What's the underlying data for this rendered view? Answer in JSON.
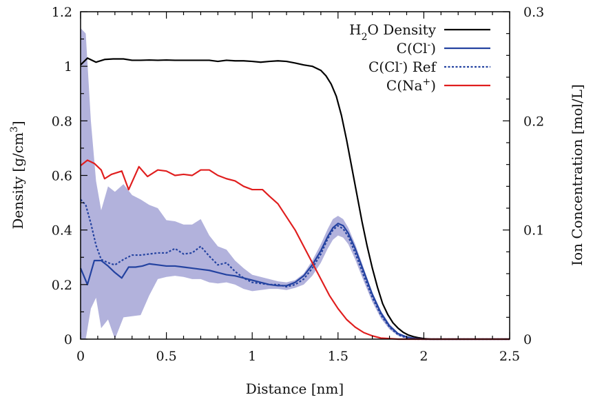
{
  "chart_data": {
    "type": "line",
    "x_axis": {
      "label": "Distance [nm]",
      "range": [
        0,
        2.5
      ],
      "ticks": [
        0,
        0.5,
        1,
        1.5,
        2,
        2.5
      ],
      "tick_labels": [
        "0",
        "0.5",
        "1",
        "1.5",
        "2",
        "2.5"
      ]
    },
    "y_axis_left": {
      "label_main": "Density [g/cm",
      "label_sup": "3",
      "label_end": "]",
      "range": [
        0,
        1.2
      ],
      "ticks": [
        0,
        0.2,
        0.4,
        0.6,
        0.8,
        1,
        1.2
      ],
      "tick_labels": [
        "0",
        "0.2",
        "0.4",
        "0.6",
        "0.8",
        "1",
        "1.2"
      ]
    },
    "y_axis_right": {
      "label": "Ion Concentration [mol/L]",
      "range": [
        0,
        0.3
      ],
      "ticks": [
        0,
        0.1,
        0.2,
        0.3
      ],
      "tick_labels": [
        "0",
        "0.1",
        "0.2",
        "0.3"
      ]
    },
    "legend": {
      "position": "top-right",
      "entries": [
        {
          "key": "h2o",
          "parts": [
            {
              "t": "H"
            },
            {
              "t": "2",
              "sub": true
            },
            {
              "t": "O Density"
            }
          ]
        },
        {
          "key": "cl",
          "parts": [
            {
              "t": "C(Cl"
            },
            {
              "t": "-",
              "sup": true
            },
            {
              "t": ")"
            }
          ]
        },
        {
          "key": "clref",
          "parts": [
            {
              "t": "C(Cl"
            },
            {
              "t": "-",
              "sup": true
            },
            {
              "t": ") Ref"
            }
          ]
        },
        {
          "key": "na",
          "parts": [
            {
              "t": "C(Na"
            },
            {
              "t": "+",
              "sup": true
            },
            {
              "t": ")"
            }
          ]
        }
      ]
    },
    "series": [
      {
        "key": "h2o",
        "name": "H2O Density",
        "axis": "left",
        "color": "#000000",
        "dash": "",
        "x": [
          0,
          0.04,
          0.09,
          0.14,
          0.19,
          0.25,
          0.3,
          0.35,
          0.4,
          0.45,
          0.5,
          0.55,
          0.6,
          0.65,
          0.7,
          0.75,
          0.8,
          0.85,
          0.9,
          0.95,
          1.0,
          1.05,
          1.1,
          1.15,
          1.2,
          1.25,
          1.3,
          1.35,
          1.4,
          1.43,
          1.46,
          1.49,
          1.52,
          1.55,
          1.58,
          1.61,
          1.64,
          1.67,
          1.7,
          1.73,
          1.76,
          1.79,
          1.82,
          1.85,
          1.88,
          1.91,
          1.94,
          1.97,
          2.0,
          2.04,
          2.08,
          2.12,
          2.2,
          2.3,
          2.4,
          2.5
        ],
        "y": [
          1.005,
          1.03,
          1.015,
          1.025,
          1.027,
          1.027,
          1.022,
          1.022,
          1.023,
          1.022,
          1.023,
          1.022,
          1.022,
          1.022,
          1.022,
          1.022,
          1.018,
          1.022,
          1.02,
          1.02,
          1.018,
          1.015,
          1.018,
          1.02,
          1.018,
          1.012,
          1.005,
          1.0,
          0.985,
          0.965,
          0.935,
          0.89,
          0.82,
          0.73,
          0.63,
          0.53,
          0.43,
          0.34,
          0.26,
          0.19,
          0.13,
          0.09,
          0.06,
          0.04,
          0.025,
          0.015,
          0.009,
          0.005,
          0.002,
          0.0,
          0.0,
          0.0,
          0.0,
          0.0,
          0.0,
          0.0
        ]
      },
      {
        "key": "cl",
        "name": "C(Cl-)",
        "axis": "right",
        "color": "#2342a0",
        "dash": "",
        "x": [
          0,
          0.04,
          0.08,
          0.12,
          0.16,
          0.2,
          0.24,
          0.28,
          0.32,
          0.36,
          0.4,
          0.45,
          0.5,
          0.55,
          0.6,
          0.65,
          0.7,
          0.75,
          0.8,
          0.85,
          0.9,
          0.95,
          1.0,
          1.05,
          1.1,
          1.15,
          1.2,
          1.25,
          1.3,
          1.35,
          1.4,
          1.44,
          1.47,
          1.5,
          1.53,
          1.56,
          1.6,
          1.65,
          1.7,
          1.75,
          1.8,
          1.85,
          1.9,
          1.95,
          2.0,
          2.05,
          2.1,
          2.2,
          2.3,
          2.5
        ],
        "y": [
          0.065,
          0.05,
          0.072,
          0.072,
          0.067,
          0.061,
          0.056,
          0.066,
          0.066,
          0.067,
          0.069,
          0.068,
          0.067,
          0.067,
          0.066,
          0.065,
          0.064,
          0.063,
          0.061,
          0.059,
          0.058,
          0.056,
          0.054,
          0.052,
          0.05,
          0.049,
          0.049,
          0.052,
          0.058,
          0.068,
          0.081,
          0.094,
          0.102,
          0.106,
          0.104,
          0.097,
          0.083,
          0.062,
          0.041,
          0.024,
          0.012,
          0.005,
          0.002,
          0.0005,
          0.0,
          0.0,
          0.0,
          0.0,
          0.0,
          0.0
        ]
      },
      {
        "key": "clref",
        "name": "C(Cl-) Ref",
        "axis": "right",
        "color": "#2342a0",
        "dash": "3,2.5",
        "x": [
          0,
          0.03,
          0.06,
          0.09,
          0.12,
          0.16,
          0.2,
          0.25,
          0.3,
          0.35,
          0.4,
          0.45,
          0.5,
          0.55,
          0.6,
          0.65,
          0.7,
          0.75,
          0.8,
          0.85,
          0.9,
          0.95,
          1.0,
          1.05,
          1.1,
          1.15,
          1.2,
          1.25,
          1.3,
          1.35,
          1.4,
          1.44,
          1.47,
          1.5,
          1.53,
          1.56,
          1.6,
          1.65,
          1.7,
          1.75,
          1.8,
          1.85,
          1.9,
          1.95,
          2.0,
          2.1,
          2.2,
          2.5
        ],
        "y": [
          0.128,
          0.123,
          0.106,
          0.086,
          0.073,
          0.07,
          0.068,
          0.073,
          0.077,
          0.077,
          0.078,
          0.079,
          0.079,
          0.083,
          0.078,
          0.079,
          0.085,
          0.076,
          0.068,
          0.07,
          0.062,
          0.056,
          0.052,
          0.051,
          0.05,
          0.05,
          0.048,
          0.05,
          0.055,
          0.065,
          0.078,
          0.092,
          0.1,
          0.104,
          0.101,
          0.094,
          0.079,
          0.058,
          0.038,
          0.022,
          0.011,
          0.004,
          0.001,
          0.0,
          0.0,
          0.0,
          0.0,
          0.0
        ]
      },
      {
        "key": "na",
        "name": "C(Na+)",
        "axis": "right",
        "color": "#e01e1e",
        "dash": "",
        "x": [
          0,
          0.04,
          0.08,
          0.12,
          0.14,
          0.18,
          0.24,
          0.28,
          0.34,
          0.39,
          0.45,
          0.5,
          0.55,
          0.6,
          0.65,
          0.7,
          0.75,
          0.8,
          0.85,
          0.9,
          0.95,
          1.0,
          1.03,
          1.06,
          1.1,
          1.15,
          1.2,
          1.25,
          1.3,
          1.35,
          1.4,
          1.45,
          1.5,
          1.55,
          1.6,
          1.65,
          1.7,
          1.75,
          1.8,
          1.85,
          1.9,
          1.95,
          2.0,
          2.1,
          2.2,
          2.5
        ],
        "y": [
          0.159,
          0.164,
          0.161,
          0.155,
          0.147,
          0.151,
          0.154,
          0.137,
          0.158,
          0.149,
          0.155,
          0.154,
          0.15,
          0.151,
          0.15,
          0.155,
          0.155,
          0.15,
          0.147,
          0.145,
          0.14,
          0.137,
          0.137,
          0.137,
          0.131,
          0.124,
          0.112,
          0.1,
          0.085,
          0.07,
          0.055,
          0.04,
          0.028,
          0.018,
          0.011,
          0.006,
          0.003,
          0.001,
          0.0005,
          0.0,
          0.0,
          0.0,
          0.0,
          0.0,
          0.0,
          0.0
        ]
      }
    ],
    "band": {
      "name": "C(Cl-) Ref uncertainty",
      "axis": "right",
      "color": "#b2b2dc",
      "x": [
        0,
        0.03,
        0.06,
        0.09,
        0.12,
        0.16,
        0.2,
        0.25,
        0.3,
        0.35,
        0.4,
        0.45,
        0.5,
        0.55,
        0.6,
        0.65,
        0.7,
        0.75,
        0.8,
        0.85,
        0.9,
        0.95,
        1.0,
        1.05,
        1.1,
        1.15,
        1.2,
        1.25,
        1.3,
        1.35,
        1.4,
        1.44,
        1.47,
        1.5,
        1.53,
        1.56,
        1.6,
        1.65,
        1.7,
        1.75,
        1.8,
        1.85,
        1.9,
        1.95,
        2.0,
        2.1,
        2.2,
        2.5
      ],
      "upper": [
        0.285,
        0.28,
        0.2,
        0.145,
        0.118,
        0.14,
        0.135,
        0.142,
        0.132,
        0.128,
        0.123,
        0.12,
        0.109,
        0.108,
        0.105,
        0.105,
        0.11,
        0.095,
        0.085,
        0.082,
        0.072,
        0.065,
        0.059,
        0.057,
        0.055,
        0.053,
        0.052,
        0.054,
        0.06,
        0.072,
        0.087,
        0.101,
        0.11,
        0.113,
        0.11,
        0.102,
        0.087,
        0.065,
        0.043,
        0.026,
        0.014,
        0.006,
        0.002,
        0.0005,
        0.0,
        0.0,
        0.0,
        0.0
      ],
      "lower": [
        0.0,
        0.0,
        0.028,
        0.038,
        0.01,
        0.018,
        0.0,
        0.02,
        0.021,
        0.022,
        0.04,
        0.055,
        0.057,
        0.058,
        0.057,
        0.055,
        0.055,
        0.052,
        0.051,
        0.052,
        0.05,
        0.046,
        0.044,
        0.045,
        0.046,
        0.046,
        0.045,
        0.047,
        0.05,
        0.058,
        0.07,
        0.083,
        0.091,
        0.095,
        0.093,
        0.087,
        0.073,
        0.053,
        0.034,
        0.019,
        0.009,
        0.003,
        0.0005,
        0.0,
        0.0,
        0.0,
        0.0,
        0.0
      ]
    }
  }
}
